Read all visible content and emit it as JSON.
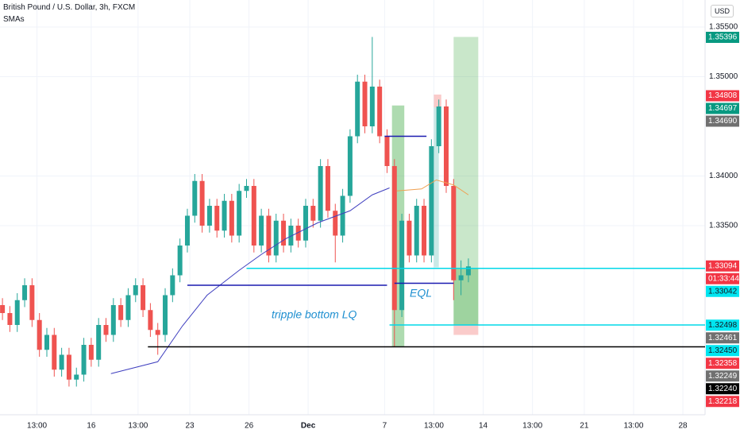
{
  "header": {
    "symbol": "British Pound / U.S. Dollar, 3h, FXCM",
    "indicator": "SMAs",
    "currency": "USD"
  },
  "chart_data": {
    "type": "candlestick",
    "up_color": "#26a69a",
    "down_color": "#ef5350",
    "xlim": [
      0,
      286
    ],
    "ylim": [
      1.31596,
      1.35772
    ],
    "yticks": [
      {
        "value": 1.355,
        "label": "1.35500"
      },
      {
        "value": 1.35,
        "label": "1.35000"
      },
      {
        "value": 1.34,
        "label": "1.34000"
      },
      {
        "value": 1.335,
        "label": "1.33500"
      }
    ],
    "xticks": [
      {
        "value": 15,
        "label": "13:00"
      },
      {
        "value": 37,
        "label": "16"
      },
      {
        "value": 56,
        "label": "13:00"
      },
      {
        "value": 77,
        "label": "23"
      },
      {
        "value": 101,
        "label": "26"
      },
      {
        "value": 125,
        "label": "Dec"
      },
      {
        "value": 156,
        "label": "7"
      },
      {
        "value": 176,
        "label": "13:00"
      },
      {
        "value": 196,
        "label": "14"
      },
      {
        "value": 216,
        "label": "13:00"
      },
      {
        "value": 237,
        "label": "21"
      },
      {
        "value": 257,
        "label": "13:00"
      },
      {
        "value": 277,
        "label": "28"
      }
    ],
    "x": [
      1,
      4,
      7,
      10,
      13,
      16,
      19,
      22,
      25,
      28,
      31,
      34,
      37,
      40,
      43,
      46,
      49,
      52,
      55,
      58,
      61,
      64,
      67,
      70,
      73,
      76,
      79,
      82,
      85,
      88,
      91,
      94,
      97,
      100,
      103,
      106,
      109,
      112,
      115,
      118,
      121,
      124,
      127,
      130,
      133,
      136,
      139,
      142,
      145,
      148,
      151,
      154,
      157,
      160,
      163,
      166,
      169,
      172,
      175,
      178,
      181,
      184,
      187,
      190
    ],
    "open": [
      1.327,
      1.3262,
      1.325,
      1.3275,
      1.329,
      1.3255,
      1.3225,
      1.324,
      1.3205,
      1.322,
      1.3195,
      1.32,
      1.323,
      1.3215,
      1.325,
      1.324,
      1.327,
      1.3255,
      1.328,
      1.329,
      1.3265,
      1.3245,
      1.324,
      1.328,
      1.33,
      1.333,
      1.336,
      1.3395,
      1.335,
      1.337,
      1.3345,
      1.3375,
      1.334,
      1.3385,
      1.339,
      1.333,
      1.336,
      1.332,
      1.3355,
      1.333,
      1.335,
      1.3335,
      1.337,
      1.3355,
      1.341,
      1.3365,
      1.334,
      1.338,
      1.344,
      1.3495,
      1.345,
      1.349,
      1.344,
      1.341,
      1.3265,
      1.3355,
      1.332,
      1.337,
      1.332,
      1.343,
      1.347,
      1.339,
      1.3295,
      1.33
    ],
    "high": [
      1.3277,
      1.3269,
      1.3282,
      1.3297,
      1.3297,
      1.3262,
      1.3247,
      1.3247,
      1.3227,
      1.3227,
      1.3207,
      1.3237,
      1.3237,
      1.3257,
      1.3257,
      1.3277,
      1.3277,
      1.3287,
      1.3297,
      1.3297,
      1.3272,
      1.3252,
      1.3287,
      1.3307,
      1.3337,
      1.3367,
      1.3402,
      1.3402,
      1.3377,
      1.3377,
      1.3382,
      1.3382,
      1.3392,
      1.3397,
      1.3397,
      1.3367,
      1.3367,
      1.3362,
      1.3362,
      1.3357,
      1.3357,
      1.3377,
      1.3377,
      1.3417,
      1.3417,
      1.3372,
      1.3387,
      1.3447,
      1.3502,
      1.3502,
      1.354,
      1.3497,
      1.3447,
      1.3417,
      1.3362,
      1.3362,
      1.3377,
      1.3377,
      1.3437,
      1.3477,
      1.3477,
      1.3397,
      1.3315,
      1.3317
    ],
    "low": [
      1.3255,
      1.3243,
      1.3243,
      1.3268,
      1.3248,
      1.3218,
      1.3218,
      1.3198,
      1.3198,
      1.3188,
      1.3188,
      1.3193,
      1.3208,
      1.3208,
      1.3233,
      1.3233,
      1.3248,
      1.3248,
      1.3273,
      1.3258,
      1.3238,
      1.322,
      1.3233,
      1.3273,
      1.3293,
      1.3323,
      1.3353,
      1.3343,
      1.3343,
      1.3338,
      1.3338,
      1.3333,
      1.3333,
      1.3378,
      1.3323,
      1.3323,
      1.3313,
      1.3313,
      1.3323,
      1.3323,
      1.3328,
      1.3328,
      1.3348,
      1.3348,
      1.3358,
      1.3313,
      1.3333,
      1.3373,
      1.3433,
      1.3443,
      1.3443,
      1.3433,
      1.3403,
      1.3228,
      1.3258,
      1.3313,
      1.3313,
      1.3313,
      1.3313,
      1.3423,
      1.3383,
      1.3275,
      1.328,
      1.3293
    ],
    "close": [
      1.3262,
      1.325,
      1.3275,
      1.329,
      1.3255,
      1.3225,
      1.324,
      1.3205,
      1.322,
      1.3195,
      1.32,
      1.323,
      1.3215,
      1.325,
      1.324,
      1.327,
      1.3255,
      1.328,
      1.329,
      1.3265,
      1.3245,
      1.324,
      1.328,
      1.33,
      1.333,
      1.336,
      1.3395,
      1.335,
      1.337,
      1.3345,
      1.3375,
      1.334,
      1.3385,
      1.339,
      1.333,
      1.336,
      1.332,
      1.3355,
      1.333,
      1.335,
      1.3335,
      1.337,
      1.3355,
      1.341,
      1.3365,
      1.334,
      1.338,
      1.344,
      1.3495,
      1.345,
      1.349,
      1.344,
      1.341,
      1.3265,
      1.3355,
      1.332,
      1.337,
      1.332,
      1.343,
      1.347,
      1.339,
      1.3295,
      1.33,
      1.3309
    ],
    "lines": [
      {
        "color": "#3f3fbf",
        "x": [
          45,
          64,
          74,
          84,
          97,
          106,
          116,
          129,
          142,
          151,
          158
        ],
        "values": [
          1.3201,
          1.3213,
          1.3249,
          1.328,
          1.3305,
          1.3321,
          1.3337,
          1.3353,
          1.3365,
          1.3381,
          1.3388
        ]
      },
      {
        "color": "#f0a050",
        "x": [
          161,
          171,
          177,
          184,
          190
        ],
        "values": [
          1.3385,
          1.3387,
          1.3396,
          1.3391,
          1.3381
        ]
      }
    ],
    "hlines": [
      {
        "price": 1.3228,
        "from": 60,
        "to": 286,
        "color": "#000000"
      },
      {
        "price": 1.325,
        "from": 158,
        "to": 286,
        "color": "#00d8e8"
      },
      {
        "price": 1.3307,
        "from": 100,
        "to": 286,
        "color": "#00d8e8"
      },
      {
        "price": 1.329,
        "from": 76,
        "to": 157,
        "color": "#1a1ab0"
      },
      {
        "price": 1.3292,
        "from": 160,
        "to": 184,
        "color": "#1a1ab0"
      },
      {
        "price": 1.344,
        "from": 156,
        "to": 173,
        "color": "#1a1ab0"
      }
    ],
    "zones": [
      {
        "from": 159,
        "to": 164,
        "top": 1.3471,
        "bottom": 1.3228,
        "color": "rgba(76,175,80,0.45)"
      },
      {
        "from": 184,
        "to": 194,
        "top": 1.354,
        "bottom": 1.325,
        "color": "rgba(76,175,80,0.3)"
      },
      {
        "from": 184,
        "to": 194,
        "top": 1.3307,
        "bottom": 1.325,
        "color": "rgba(76,175,80,0.35)"
      },
      {
        "from": 184,
        "to": 194,
        "top": 1.325,
        "bottom": 1.324,
        "color": "rgba(239,83,80,0.3)"
      },
      {
        "from": 176,
        "to": 179,
        "top": 1.3482,
        "bottom": 1.3469,
        "color": "rgba(239,83,80,0.3)"
      },
      {
        "from": 176,
        "to": 178,
        "top": 1.3469,
        "bottom": 1.3308,
        "color": "rgba(38,166,154,0.25)"
      }
    ],
    "annotations": [
      "tripple bottom LQ",
      "EQL"
    ],
    "price_labels": [
      {
        "value": 1.35396,
        "label": "1.35396",
        "color": "#089981"
      },
      {
        "value": 1.34808,
        "label": "1.34808",
        "color": "#f23645"
      },
      {
        "value": 1.34697,
        "label": "1.34697",
        "color": "#089981"
      },
      {
        "value": 1.3469,
        "label": "1.34690",
        "color": "#707070"
      },
      {
        "value": 1.33094,
        "label": "1.33094",
        "color": "#f23645",
        "countdown": "01:33:44"
      },
      {
        "value": 1.33042,
        "label": "1.33042",
        "color": "#00e5f0"
      },
      {
        "value": 1.32498,
        "label": "1.32498",
        "color": "#00e5f0"
      },
      {
        "value": 1.32461,
        "label": "1.32461",
        "color": "#707070"
      },
      {
        "value": 1.3245,
        "label": "1.32450",
        "color": "#00e5f0"
      },
      {
        "value": 1.32358,
        "label": "1.32358",
        "color": "#f23645"
      },
      {
        "value": 1.32249,
        "label": "1.32249",
        "color": "#707070"
      },
      {
        "value": 1.3224,
        "label": "1.32240",
        "color": "#000000"
      },
      {
        "value": 1.32218,
        "label": "1.32218",
        "color": "#f23645"
      }
    ]
  }
}
